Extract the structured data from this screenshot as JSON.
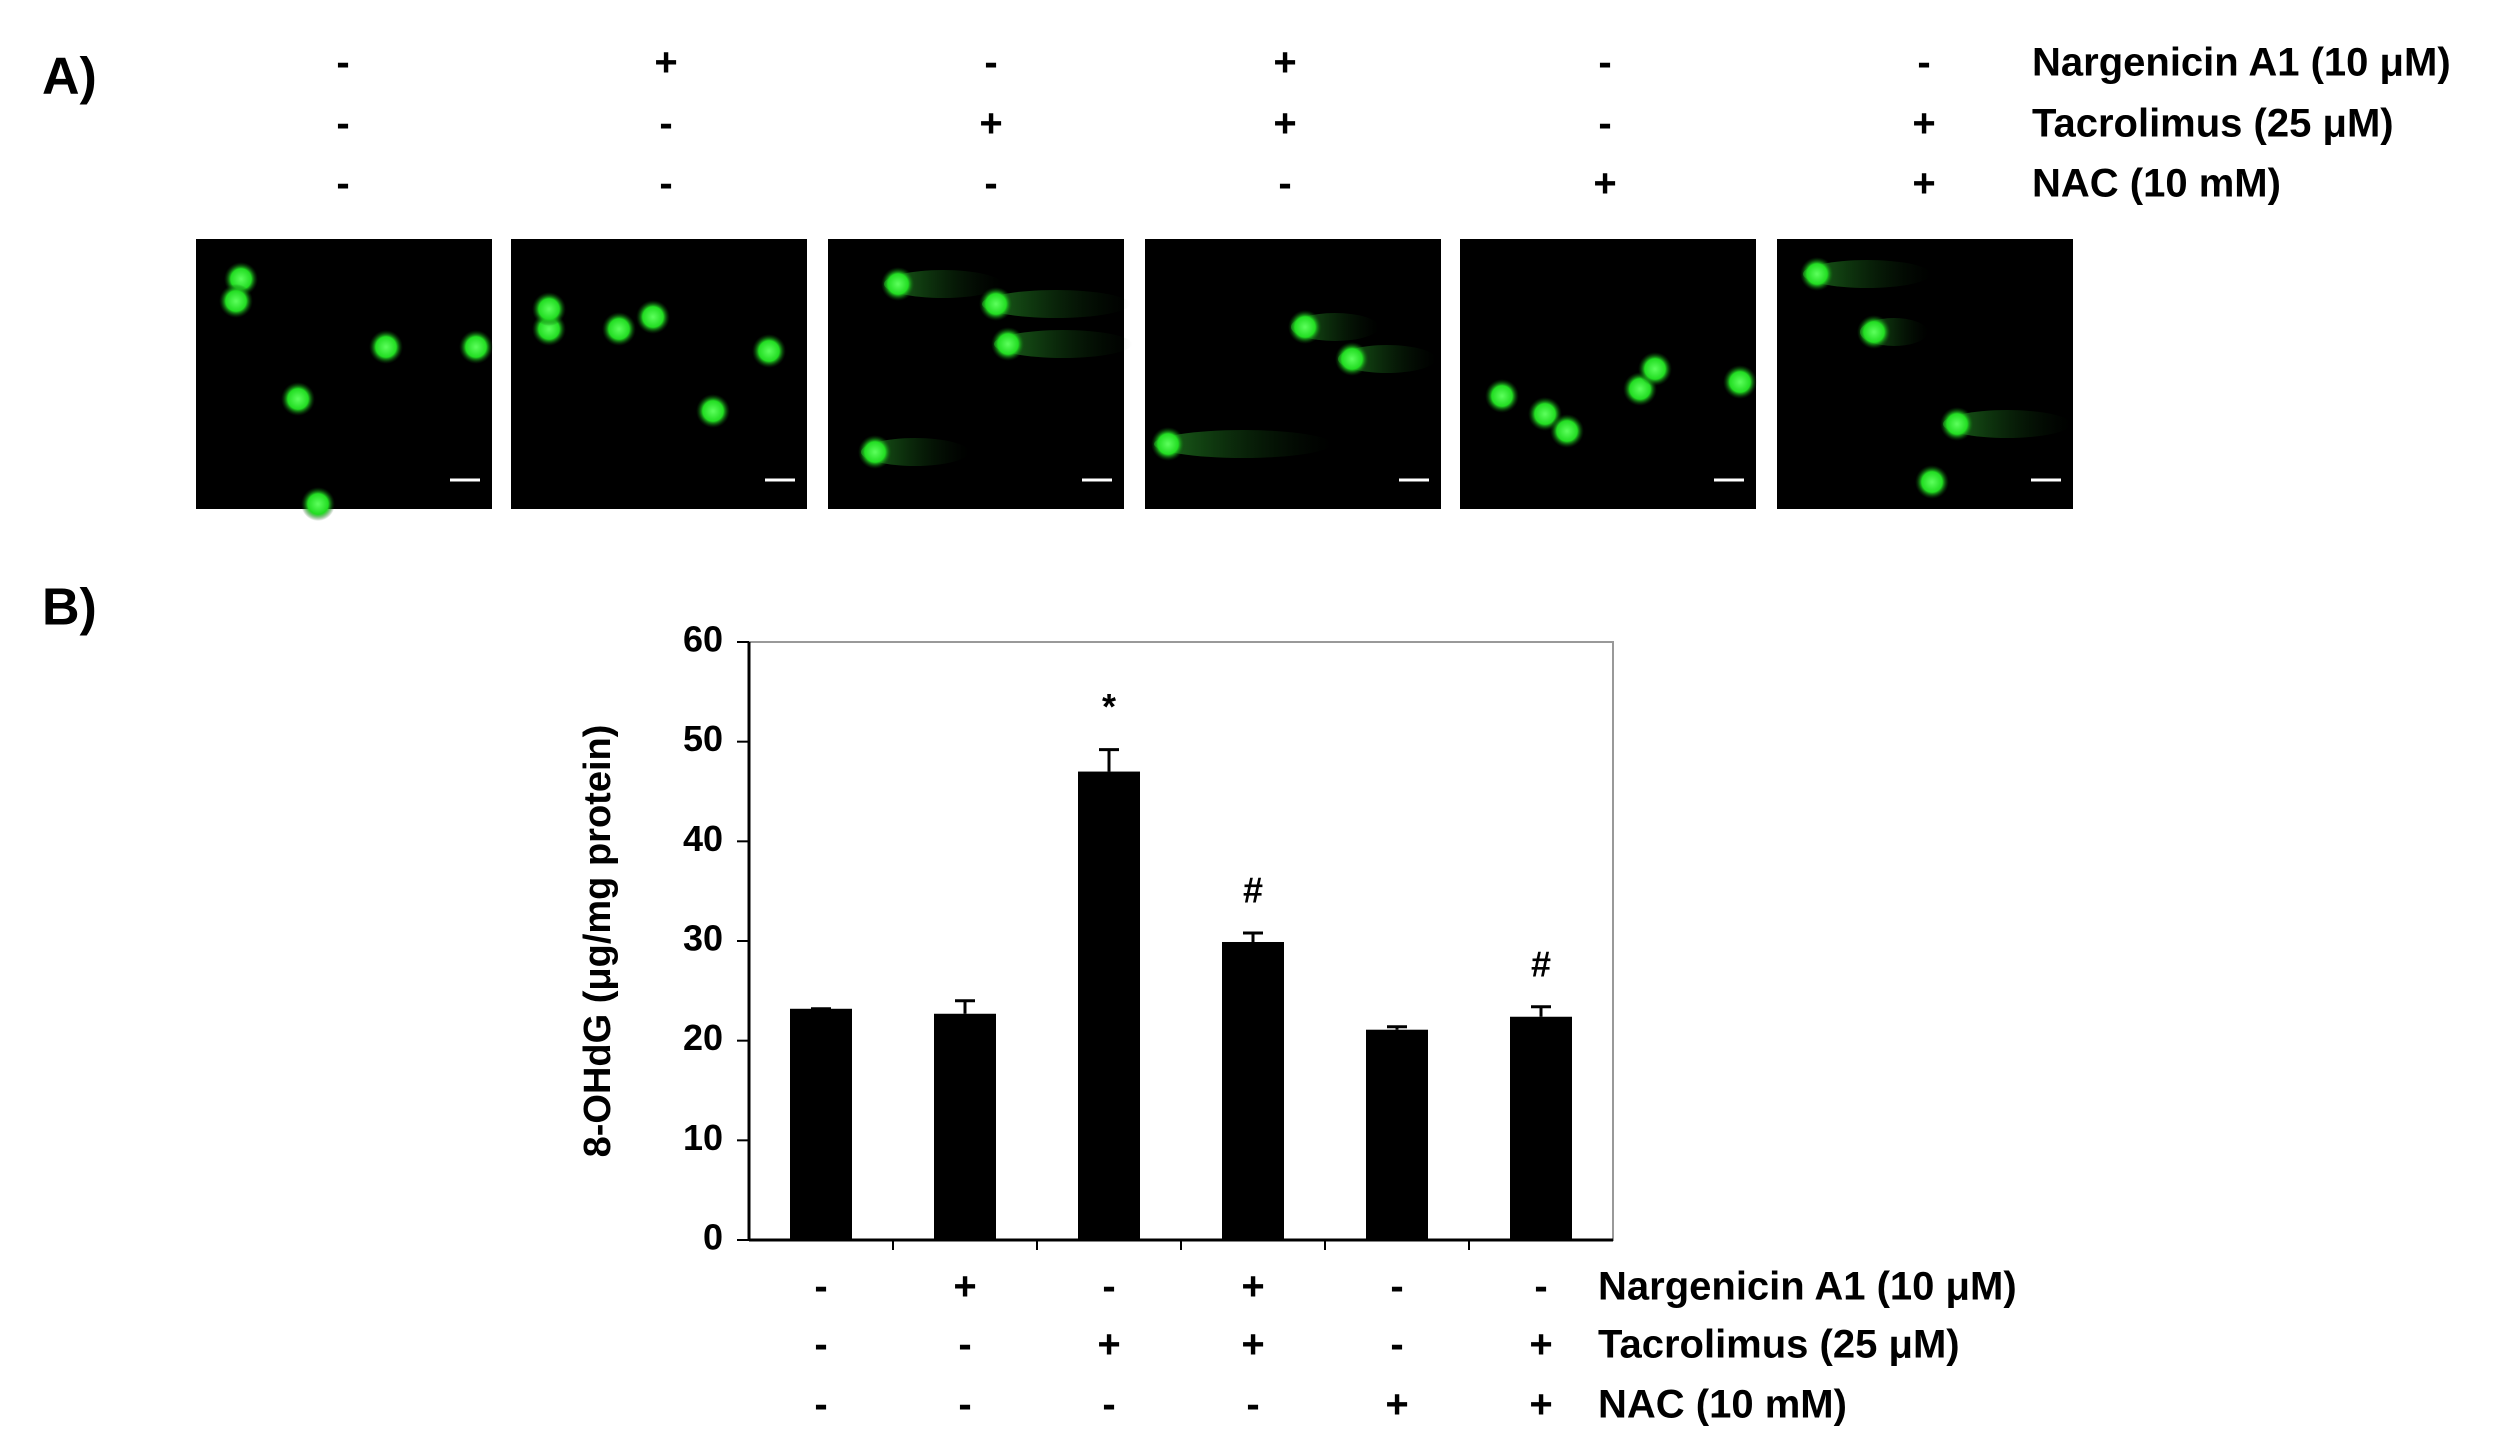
{
  "panel_a": {
    "label": "A)",
    "treatments": [
      {
        "name": "Nargenicin A1 (10 μM)",
        "signs": [
          "-",
          "+",
          "-",
          "+",
          "-",
          "-"
        ]
      },
      {
        "name": "Tacrolimus (25 μM)",
        "signs": [
          "-",
          "-",
          "+",
          "+",
          "-",
          "+"
        ]
      },
      {
        "name": "NAC (10 mM)",
        "signs": [
          "-",
          "-",
          "-",
          "-",
          "+",
          "+"
        ]
      }
    ]
  },
  "chart_data": {
    "type": "bar",
    "panel_label": "B)",
    "ylabel": "8-OHdG (μg/mg protein)",
    "values": [
      23.2,
      22.7,
      47.0,
      29.9,
      21.1,
      22.4
    ],
    "errors": [
      0,
      1.3,
      2.2,
      0.9,
      0.3,
      1.0
    ],
    "annotations": [
      null,
      null,
      "*",
      "#",
      null,
      "#"
    ],
    "color": "#000000",
    "ylim": [
      0,
      60
    ],
    "yticks": [
      0,
      10,
      20,
      30,
      40,
      50,
      60
    ],
    "treatments": [
      {
        "name": "Nargenicin A1 (10 μM)",
        "signs": [
          "-",
          "+",
          "-",
          "+",
          "-",
          "-"
        ]
      },
      {
        "name": "Tacrolimus (25 μM)",
        "signs": [
          "-",
          "-",
          "+",
          "+",
          "-",
          "+"
        ]
      },
      {
        "name": "NAC (10 mM)",
        "signs": [
          "-",
          "-",
          "-",
          "-",
          "+",
          "+"
        ]
      }
    ]
  }
}
